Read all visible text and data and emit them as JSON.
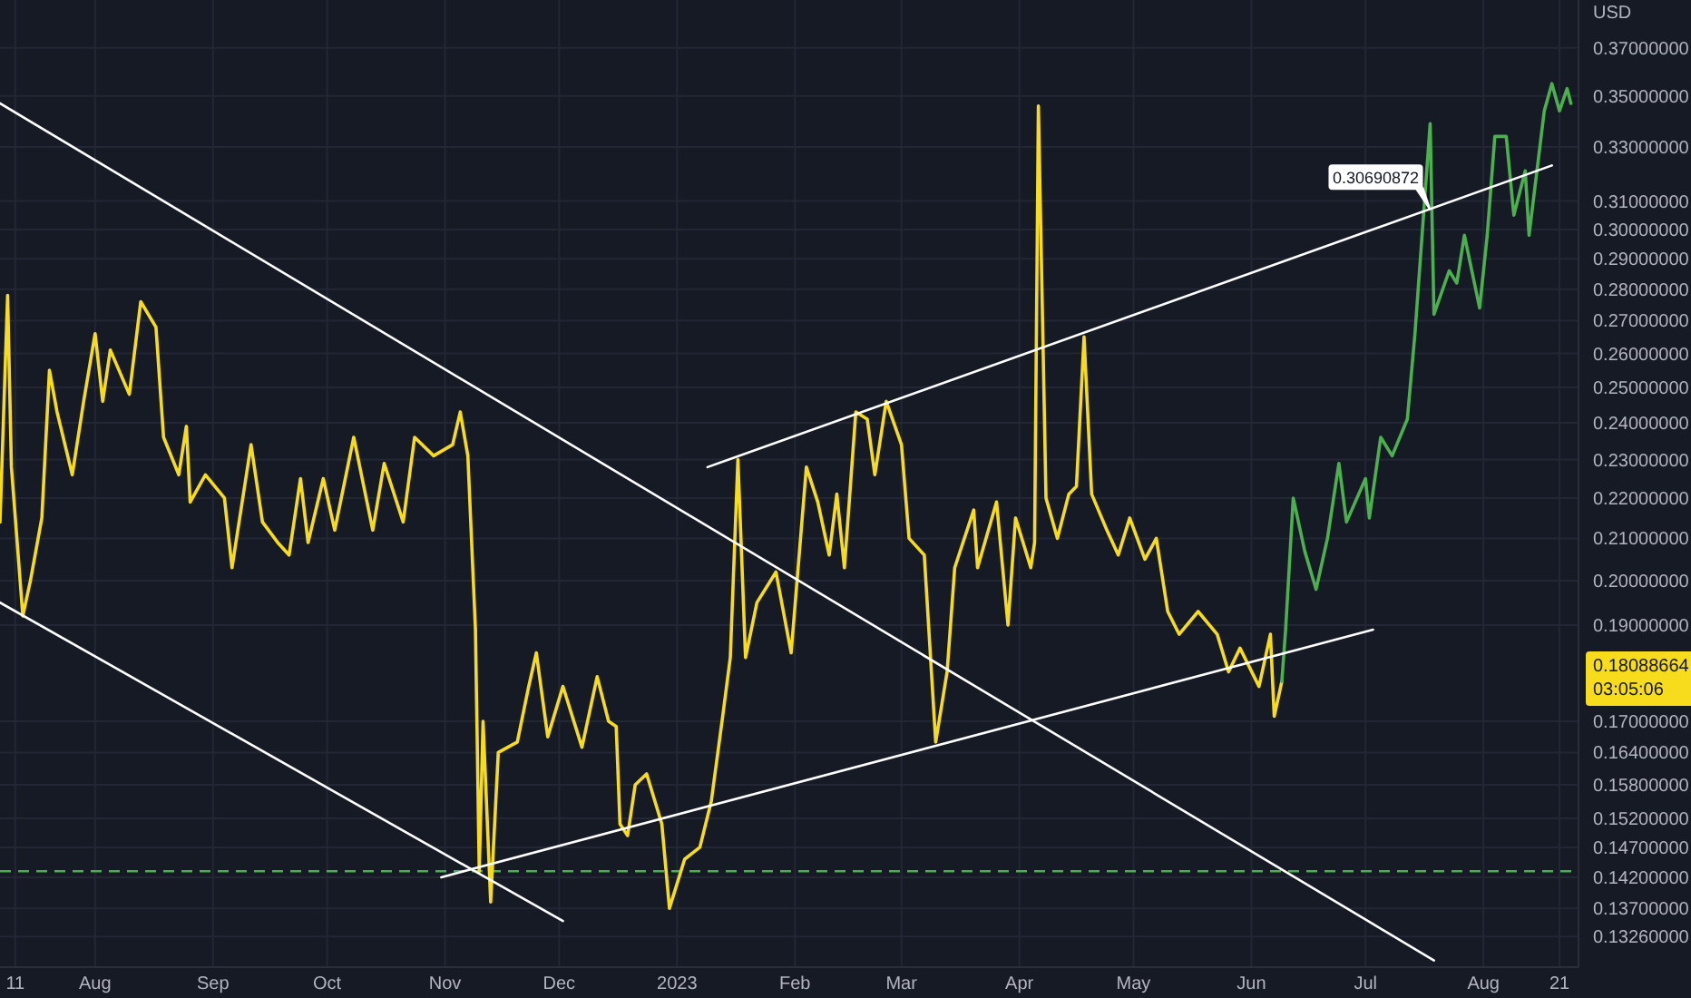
{
  "chart_data": {
    "type": "line",
    "ylabel": "USD",
    "log": true,
    "grid": true,
    "xlim": [
      "2022-07-07",
      "2023-08-26"
    ],
    "xticks": [
      {
        "value": "2022-07-11",
        "label": "11"
      },
      {
        "value": "2022-08-01",
        "label": "Aug"
      },
      {
        "value": "2022-09-01",
        "label": "Sep"
      },
      {
        "value": "2022-10-01",
        "label": "Oct"
      },
      {
        "value": "2022-11-01",
        "label": "Nov"
      },
      {
        "value": "2022-12-01",
        "label": "Dec"
      },
      {
        "value": "2023-01-01",
        "label": "2023"
      },
      {
        "value": "2023-02-01",
        "label": "Feb"
      },
      {
        "value": "2023-03-01",
        "label": "Mar"
      },
      {
        "value": "2023-04-01",
        "label": "Apr"
      },
      {
        "value": "2023-05-01",
        "label": "May"
      },
      {
        "value": "2023-06-01",
        "label": "Jun"
      },
      {
        "value": "2023-07-01",
        "label": "Jul"
      },
      {
        "value": "2023-08-01",
        "label": "Aug"
      },
      {
        "value": "2023-08-21",
        "label": "21"
      }
    ],
    "ylim": [
      0.128,
      0.391
    ],
    "yticks": [
      {
        "value": 0.37,
        "label": "0.37000000"
      },
      {
        "value": 0.35,
        "label": "0.35000000"
      },
      {
        "value": 0.33,
        "label": "0.33000000"
      },
      {
        "value": 0.31,
        "label": "0.31000000"
      },
      {
        "value": 0.3,
        "label": "0.30000000"
      },
      {
        "value": 0.29,
        "label": "0.29000000"
      },
      {
        "value": 0.28,
        "label": "0.28000000"
      },
      {
        "value": 0.27,
        "label": "0.27000000"
      },
      {
        "value": 0.26,
        "label": "0.26000000"
      },
      {
        "value": 0.25,
        "label": "0.25000000"
      },
      {
        "value": 0.24,
        "label": "0.24000000"
      },
      {
        "value": 0.23,
        "label": "0.23000000"
      },
      {
        "value": 0.22,
        "label": "0.22000000"
      },
      {
        "value": 0.21,
        "label": "0.21000000"
      },
      {
        "value": 0.2,
        "label": "0.20000000"
      },
      {
        "value": 0.19,
        "label": "0.19000000"
      },
      {
        "value": 0.17,
        "label": "0.17000000"
      },
      {
        "value": 0.164,
        "label": "0.16400000"
      },
      {
        "value": 0.158,
        "label": "0.15800000"
      },
      {
        "value": 0.152,
        "label": "0.15200000"
      },
      {
        "value": 0.147,
        "label": "0.14700000"
      },
      {
        "value": 0.142,
        "label": "0.14200000"
      },
      {
        "value": 0.137,
        "label": "0.13700000"
      },
      {
        "value": 0.1326,
        "label": "0.13260000"
      }
    ],
    "ref_lines": [
      {
        "axis": "y",
        "value": 0.143,
        "color": "#4caf50",
        "line_style": "dashed"
      }
    ],
    "annotations": [
      {
        "text": "0.30690872",
        "x": "2023-07-18",
        "y": 0.30690872
      },
      "0.18088664",
      "03:05:06"
    ],
    "series": [
      {
        "color": "#f7dc1e",
        "x": [
          "2022-07-07",
          "2022-07-09",
          "2022-07-10",
          "2022-07-13",
          "2022-07-15",
          "2022-07-18",
          "2022-07-20",
          "2022-07-22",
          "2022-07-26",
          "2022-07-29",
          "2022-08-01",
          "2022-08-03",
          "2022-08-05",
          "2022-08-10",
          "2022-08-13",
          "2022-08-17",
          "2022-08-19",
          "2022-08-23",
          "2022-08-25",
          "2022-08-26",
          "2022-08-30",
          "2022-09-04",
          "2022-09-06",
          "2022-09-11",
          "2022-09-14",
          "2022-09-18",
          "2022-09-21",
          "2022-09-24",
          "2022-09-26",
          "2022-09-30",
          "2022-10-03",
          "2022-10-08",
          "2022-10-13",
          "2022-10-16",
          "2022-10-21",
          "2022-10-24",
          "2022-10-29",
          "2022-11-03",
          "2022-11-05",
          "2022-11-07",
          "2022-11-09",
          "2022-11-10",
          "2022-11-11",
          "2022-11-13",
          "2022-11-15",
          "2022-11-20",
          "2022-11-23",
          "2022-11-25",
          "2022-11-28",
          "2022-12-02",
          "2022-12-07",
          "2022-12-11",
          "2022-12-14",
          "2022-12-16",
          "2022-12-17",
          "2022-12-19",
          "2022-12-21",
          "2022-12-24",
          "2022-12-28",
          "2022-12-30",
          "2023-01-03",
          "2023-01-07",
          "2023-01-10",
          "2023-01-13",
          "2023-01-15",
          "2023-01-17",
          "2023-01-19",
          "2023-01-22",
          "2023-01-27",
          "2023-01-31",
          "2023-02-04",
          "2023-02-07",
          "2023-02-10",
          "2023-02-12",
          "2023-02-14",
          "2023-02-17",
          "2023-02-20",
          "2023-02-22",
          "2023-02-25",
          "2023-03-01",
          "2023-03-03",
          "2023-03-07",
          "2023-03-10",
          "2023-03-13",
          "2023-03-15",
          "2023-03-20",
          "2023-03-21",
          "2023-03-26",
          "2023-03-29",
          "2023-03-31",
          "2023-04-04",
          "2023-04-05",
          "2023-04-06",
          "2023-04-08",
          "2023-04-11",
          "2023-04-14",
          "2023-04-16",
          "2023-04-18",
          "2023-04-20",
          "2023-04-24",
          "2023-04-27",
          "2023-04-30",
          "2023-05-04",
          "2023-05-07",
          "2023-05-10",
          "2023-05-13",
          "2023-05-18",
          "2023-05-23",
          "2023-05-26",
          "2023-05-29",
          "2023-06-03",
          "2023-06-06",
          "2023-06-07",
          "2023-06-09"
        ],
        "values": [
          0.214,
          0.278,
          0.228,
          0.192,
          0.2,
          0.215,
          0.255,
          0.243,
          0.226,
          0.246,
          0.266,
          0.246,
          0.261,
          0.248,
          0.276,
          0.268,
          0.236,
          0.226,
          0.239,
          0.219,
          0.226,
          0.22,
          0.203,
          0.234,
          0.214,
          0.209,
          0.206,
          0.225,
          0.209,
          0.225,
          0.212,
          0.236,
          0.212,
          0.229,
          0.214,
          0.236,
          0.231,
          0.234,
          0.243,
          0.231,
          0.189,
          0.143,
          0.17,
          0.138,
          0.164,
          0.166,
          0.177,
          0.184,
          0.167,
          0.177,
          0.165,
          0.179,
          0.17,
          0.169,
          0.151,
          0.149,
          0.158,
          0.16,
          0.151,
          0.137,
          0.145,
          0.147,
          0.155,
          0.171,
          0.183,
          0.23,
          0.183,
          0.195,
          0.202,
          0.184,
          0.228,
          0.219,
          0.206,
          0.221,
          0.203,
          0.243,
          0.241,
          0.226,
          0.246,
          0.234,
          0.21,
          0.206,
          0.166,
          0.18,
          0.203,
          0.217,
          0.203,
          0.219,
          0.19,
          0.215,
          0.203,
          0.209,
          0.346,
          0.22,
          0.21,
          0.221,
          0.223,
          0.265,
          0.221,
          0.212,
          0.206,
          0.215,
          0.205,
          0.21,
          0.193,
          0.188,
          0.193,
          0.188,
          0.18,
          0.185,
          0.177,
          0.188,
          0.171,
          0.178
        ]
      },
      {
        "color": "#4caf50",
        "x": [
          "2023-06-09",
          "2023-06-10",
          "2023-06-12",
          "2023-06-15",
          "2023-06-18",
          "2023-06-21",
          "2023-06-24",
          "2023-06-26",
          "2023-07-01",
          "2023-07-02",
          "2023-07-05",
          "2023-07-08",
          "2023-07-12",
          "2023-07-14",
          "2023-07-18",
          "2023-07-19",
          "2023-07-23",
          "2023-07-25",
          "2023-07-27",
          "2023-07-31",
          "2023-08-02",
          "2023-08-04",
          "2023-08-07",
          "2023-08-09",
          "2023-08-12",
          "2023-08-13",
          "2023-08-17",
          "2023-08-19",
          "2023-08-21",
          "2023-08-23",
          "2023-08-24"
        ],
        "values": [
          0.178,
          0.189,
          0.22,
          0.207,
          0.198,
          0.21,
          0.229,
          0.214,
          0.225,
          0.215,
          0.236,
          0.231,
          0.241,
          0.266,
          0.339,
          0.272,
          0.286,
          0.282,
          0.298,
          0.274,
          0.298,
          0.334,
          0.334,
          0.305,
          0.321,
          0.298,
          0.344,
          0.355,
          0.344,
          0.353,
          0.347
        ]
      },
      {
        "color": "#ffffff",
        "x": [
          "2022-07-07",
          "2023-07-19"
        ],
        "values": [
          0.347,
          0.129
        ]
      },
      {
        "color": "#ffffff",
        "x": [
          "2022-07-07",
          "2022-12-02"
        ],
        "values": [
          0.195,
          0.135
        ]
      },
      {
        "color": "#ffffff",
        "x": [
          "2022-10-31",
          "2023-07-03"
        ],
        "values": [
          0.142,
          0.189
        ]
      },
      {
        "color": "#ffffff",
        "x": [
          "2023-01-09",
          "2023-08-19"
        ],
        "values": [
          0.228,
          0.323
        ]
      }
    ]
  }
}
